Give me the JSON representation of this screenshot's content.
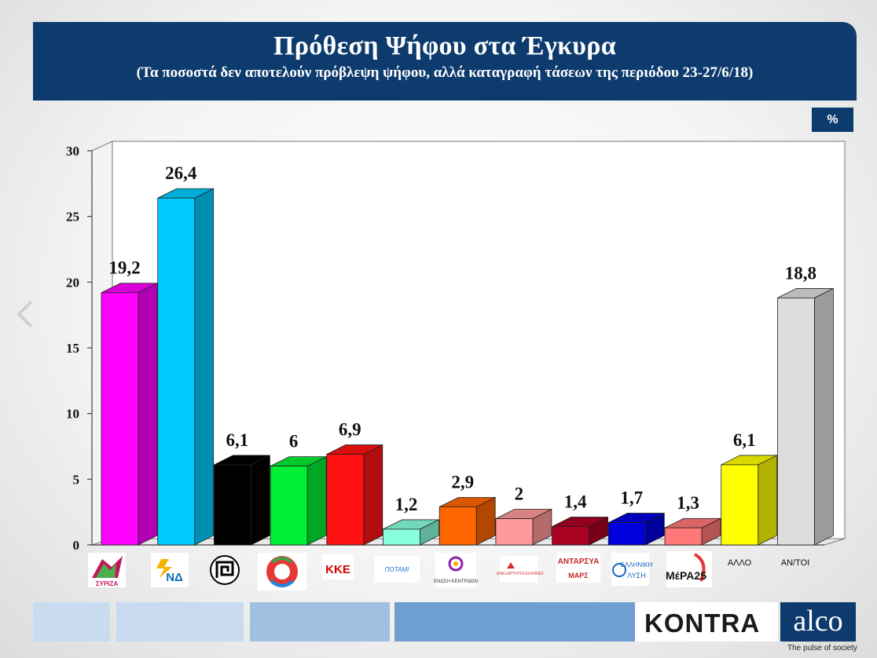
{
  "header": {
    "title": "Πρόθεση Ψήφου στα Έγκυρα",
    "subtitle": "(Τα ποσοστά δεν αποτελούν πρόβλεψη ψήφου, αλλά καταγραφή τάσεων  της περιόδου 23-27/6/18)"
  },
  "unit_label": "%",
  "chart_data": {
    "type": "bar",
    "title": "Πρόθεση Ψήφου στα Έγκυρα",
    "categories": [
      "ΣΥΡΙΖΑ",
      "ΝΔ",
      "Χρυσή Αυγή",
      "Κίνημα Αλλαγής",
      "ΚΚΕ",
      "Ποτάμι",
      "ΕΝΩΣΗ ΚΕΝΤΡΩΩΝ",
      "ΑΝΕΛ",
      "ΑΝΤΑΡΣΥΑ",
      "ΕΛΛΗΝΙΚΗ ΛΥΣΗ",
      "ΜέΡΑ25",
      "ΑΛΛΟ",
      "ΑΝ/ΤΟΙ"
    ],
    "values": [
      19.2,
      26.4,
      6.1,
      6,
      6.9,
      1.2,
      2.9,
      2,
      1.4,
      1.7,
      1.3,
      6.1,
      18.8
    ],
    "value_labels": [
      "19,2",
      "26,4",
      "6,1",
      "6",
      "6,9",
      "1,2",
      "2,9",
      "2",
      "1,4",
      "1,7",
      "1,3",
      "6,1",
      "18,8"
    ],
    "colors": [
      "#ff00ff",
      "#00ccff",
      "#000000",
      "#00ee33",
      "#ff1111",
      "#88ffdd",
      "#ff6600",
      "#ff9999",
      "#aa0022",
      "#0000dd",
      "#ff7777",
      "#ffff00",
      "#dddddd"
    ],
    "ylim": [
      0,
      30
    ],
    "yticks": [
      "0",
      "5",
      "10",
      "15",
      "20",
      "25",
      "30"
    ],
    "xlabel": "",
    "ylabel": "",
    "grid": false,
    "tick_texts": {
      "syriza": "ΣΥΡΙΖΑ",
      "nd": "ΝΔ",
      "kke": "ΚΚΕ",
      "potami": "ΠΟΤΑΜΙ",
      "enosi": "ΕΝΩΣΗ ΚΕΝΤΡΩΩΝ",
      "anel": "ΑΝΕΞΑΡΤΗΤΟΙ ΕΛΛΗΝΕΣ",
      "antarsya_top": "ΑΝΤΑΡΣΥΑ",
      "antarsya_bottom": "ΜΑΡΣ",
      "elliniki_top": "ΕΛΛΗΝΙΚΗ",
      "elliniki_bottom": "ΛΥΣΗ",
      "mera": "ΜέΡΑ25",
      "allo": "ΑΛΛΟ",
      "antoi": "ΑΝ/ΤΟΙ"
    }
  },
  "footer": {
    "brand1": "KONTRA",
    "brand2": "alco",
    "tagline": "The pulse of society",
    "colors": {
      "navy": "#0d3b6e",
      "light": "#c9dcef",
      "mid": "#9fc0e0",
      "dark": "#6f9fd0"
    }
  }
}
